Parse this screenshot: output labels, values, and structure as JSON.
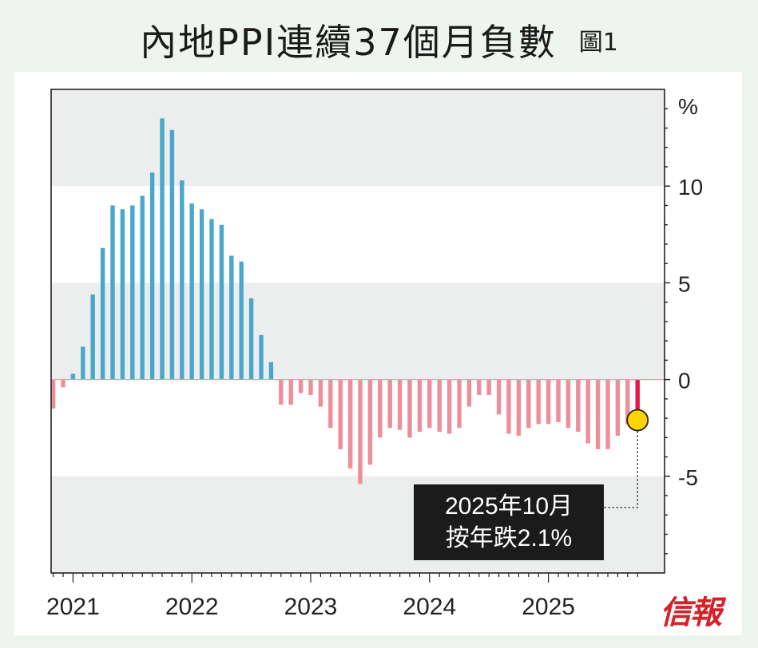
{
  "header": {
    "title": "內地PPI連續37個月負數",
    "figure_label": "圖1"
  },
  "callout": {
    "line1": "2025年10月",
    "line2": "按年跌2.1%"
  },
  "logo": {
    "text": "信報"
  },
  "colors": {
    "positive": "#4aa7cc",
    "negative": "#ee8e9a",
    "highlight": "#e8154a",
    "band": "#eceeed",
    "marker": "#ffd400"
  },
  "chart_data": {
    "type": "bar",
    "title": "內地PPI連續37個月負數",
    "ylabel": "%",
    "ylim": [
      -10,
      15
    ],
    "yticks": [
      "10",
      "5",
      "0",
      "-5"
    ],
    "ytick_values": [
      10,
      5,
      0,
      -5
    ],
    "xtick_labels": [
      "2021",
      "2022",
      "2023",
      "2024",
      "2025"
    ],
    "start": "2020-11",
    "categories": [
      "2020-11",
      "2020-12",
      "2021-01",
      "2021-02",
      "2021-03",
      "2021-04",
      "2021-05",
      "2021-06",
      "2021-07",
      "2021-08",
      "2021-09",
      "2021-10",
      "2021-11",
      "2021-12",
      "2022-01",
      "2022-02",
      "2022-03",
      "2022-04",
      "2022-05",
      "2022-06",
      "2022-07",
      "2022-08",
      "2022-09",
      "2022-10",
      "2022-11",
      "2022-12",
      "2023-01",
      "2023-02",
      "2023-03",
      "2023-04",
      "2023-05",
      "2023-06",
      "2023-07",
      "2023-08",
      "2023-09",
      "2023-10",
      "2023-11",
      "2023-12",
      "2024-01",
      "2024-02",
      "2024-03",
      "2024-04",
      "2024-05",
      "2024-06",
      "2024-07",
      "2024-08",
      "2024-09",
      "2024-10",
      "2024-11",
      "2024-12",
      "2025-01",
      "2025-02",
      "2025-03",
      "2025-04",
      "2025-05",
      "2025-06",
      "2025-07",
      "2025-08",
      "2025-09",
      "2025-10"
    ],
    "values": [
      -1.5,
      -0.4,
      0.3,
      1.7,
      4.4,
      6.8,
      9.0,
      8.8,
      9.0,
      9.5,
      10.7,
      13.5,
      12.9,
      10.3,
      9.1,
      8.8,
      8.3,
      8.0,
      6.4,
      6.1,
      4.2,
      2.3,
      0.9,
      -1.3,
      -1.3,
      -0.7,
      -0.8,
      -1.4,
      -2.5,
      -3.6,
      -4.6,
      -5.4,
      -4.4,
      -3.0,
      -2.5,
      -2.6,
      -3.0,
      -2.7,
      -2.5,
      -2.7,
      -2.8,
      -2.5,
      -1.4,
      -0.8,
      -0.8,
      -1.8,
      -2.8,
      -2.9,
      -2.5,
      -2.3,
      -2.3,
      -2.2,
      -2.5,
      -2.7,
      -3.3,
      -3.6,
      -3.6,
      -2.9,
      -2.3,
      -2.1
    ],
    "highlight": {
      "category": "2025-10",
      "value": -2.1
    }
  }
}
